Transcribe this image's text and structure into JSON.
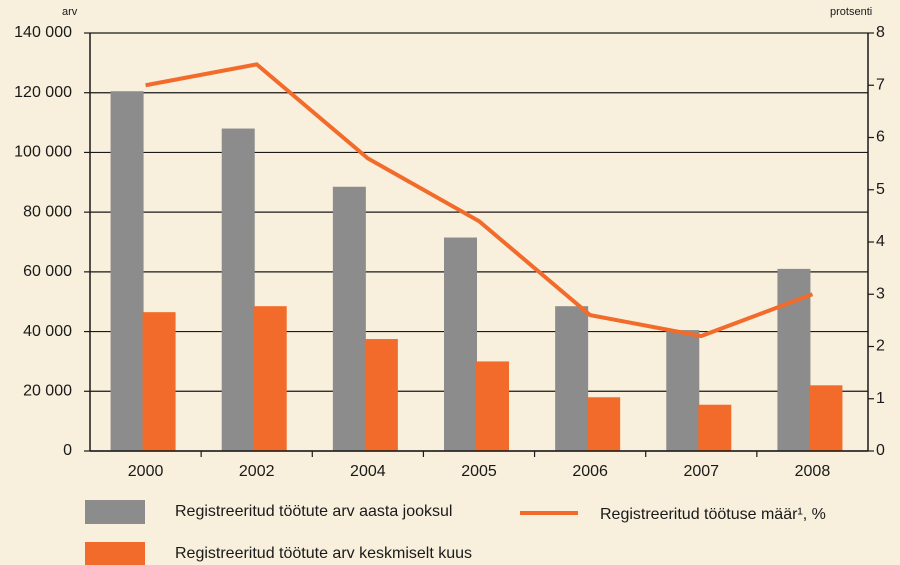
{
  "chart_data": {
    "type": "bar_line",
    "y_label": "arv",
    "y2_label": "protsenti",
    "categories": [
      "2000",
      "2002",
      "2004",
      "2005",
      "2006",
      "2007",
      "2008"
    ],
    "series": [
      {
        "name": "Registreeritud töötute arv aasta jooksul",
        "type": "bar",
        "color": "#8c8c8c",
        "values": [
          120500,
          108000,
          88500,
          71500,
          48500,
          40500,
          61000
        ]
      },
      {
        "name": "Registreeritud töötute arv keskmiselt kuus",
        "type": "bar",
        "color": "#f26b2a",
        "values": [
          46500,
          48500,
          37500,
          30000,
          18000,
          15500,
          22000
        ]
      },
      {
        "name": "Registreeritud töötuse määr¹, %",
        "type": "line",
        "axis": "y2",
        "color": "#f26b2a",
        "values": [
          7.0,
          7.4,
          5.6,
          4.4,
          2.6,
          2.2,
          3.0
        ]
      }
    ],
    "ylim": [
      0,
      140000
    ],
    "yticks": [
      0,
      {
        "value": 20000,
        "label": "20 000"
      },
      {
        "value": 40000,
        "label": "40 000"
      },
      {
        "value": 60000,
        "label": "60 000"
      },
      {
        "value": 80000,
        "label": "80 000"
      },
      {
        "value": 100000,
        "label": "100 000"
      },
      {
        "value": 120000,
        "label": "120 000"
      },
      {
        "value": 140000,
        "label": "140 000"
      }
    ],
    "y2lim": [
      0,
      8
    ],
    "y2ticks": [
      0,
      1,
      2,
      3,
      4,
      5,
      6,
      7,
      8
    ],
    "grid": true
  }
}
